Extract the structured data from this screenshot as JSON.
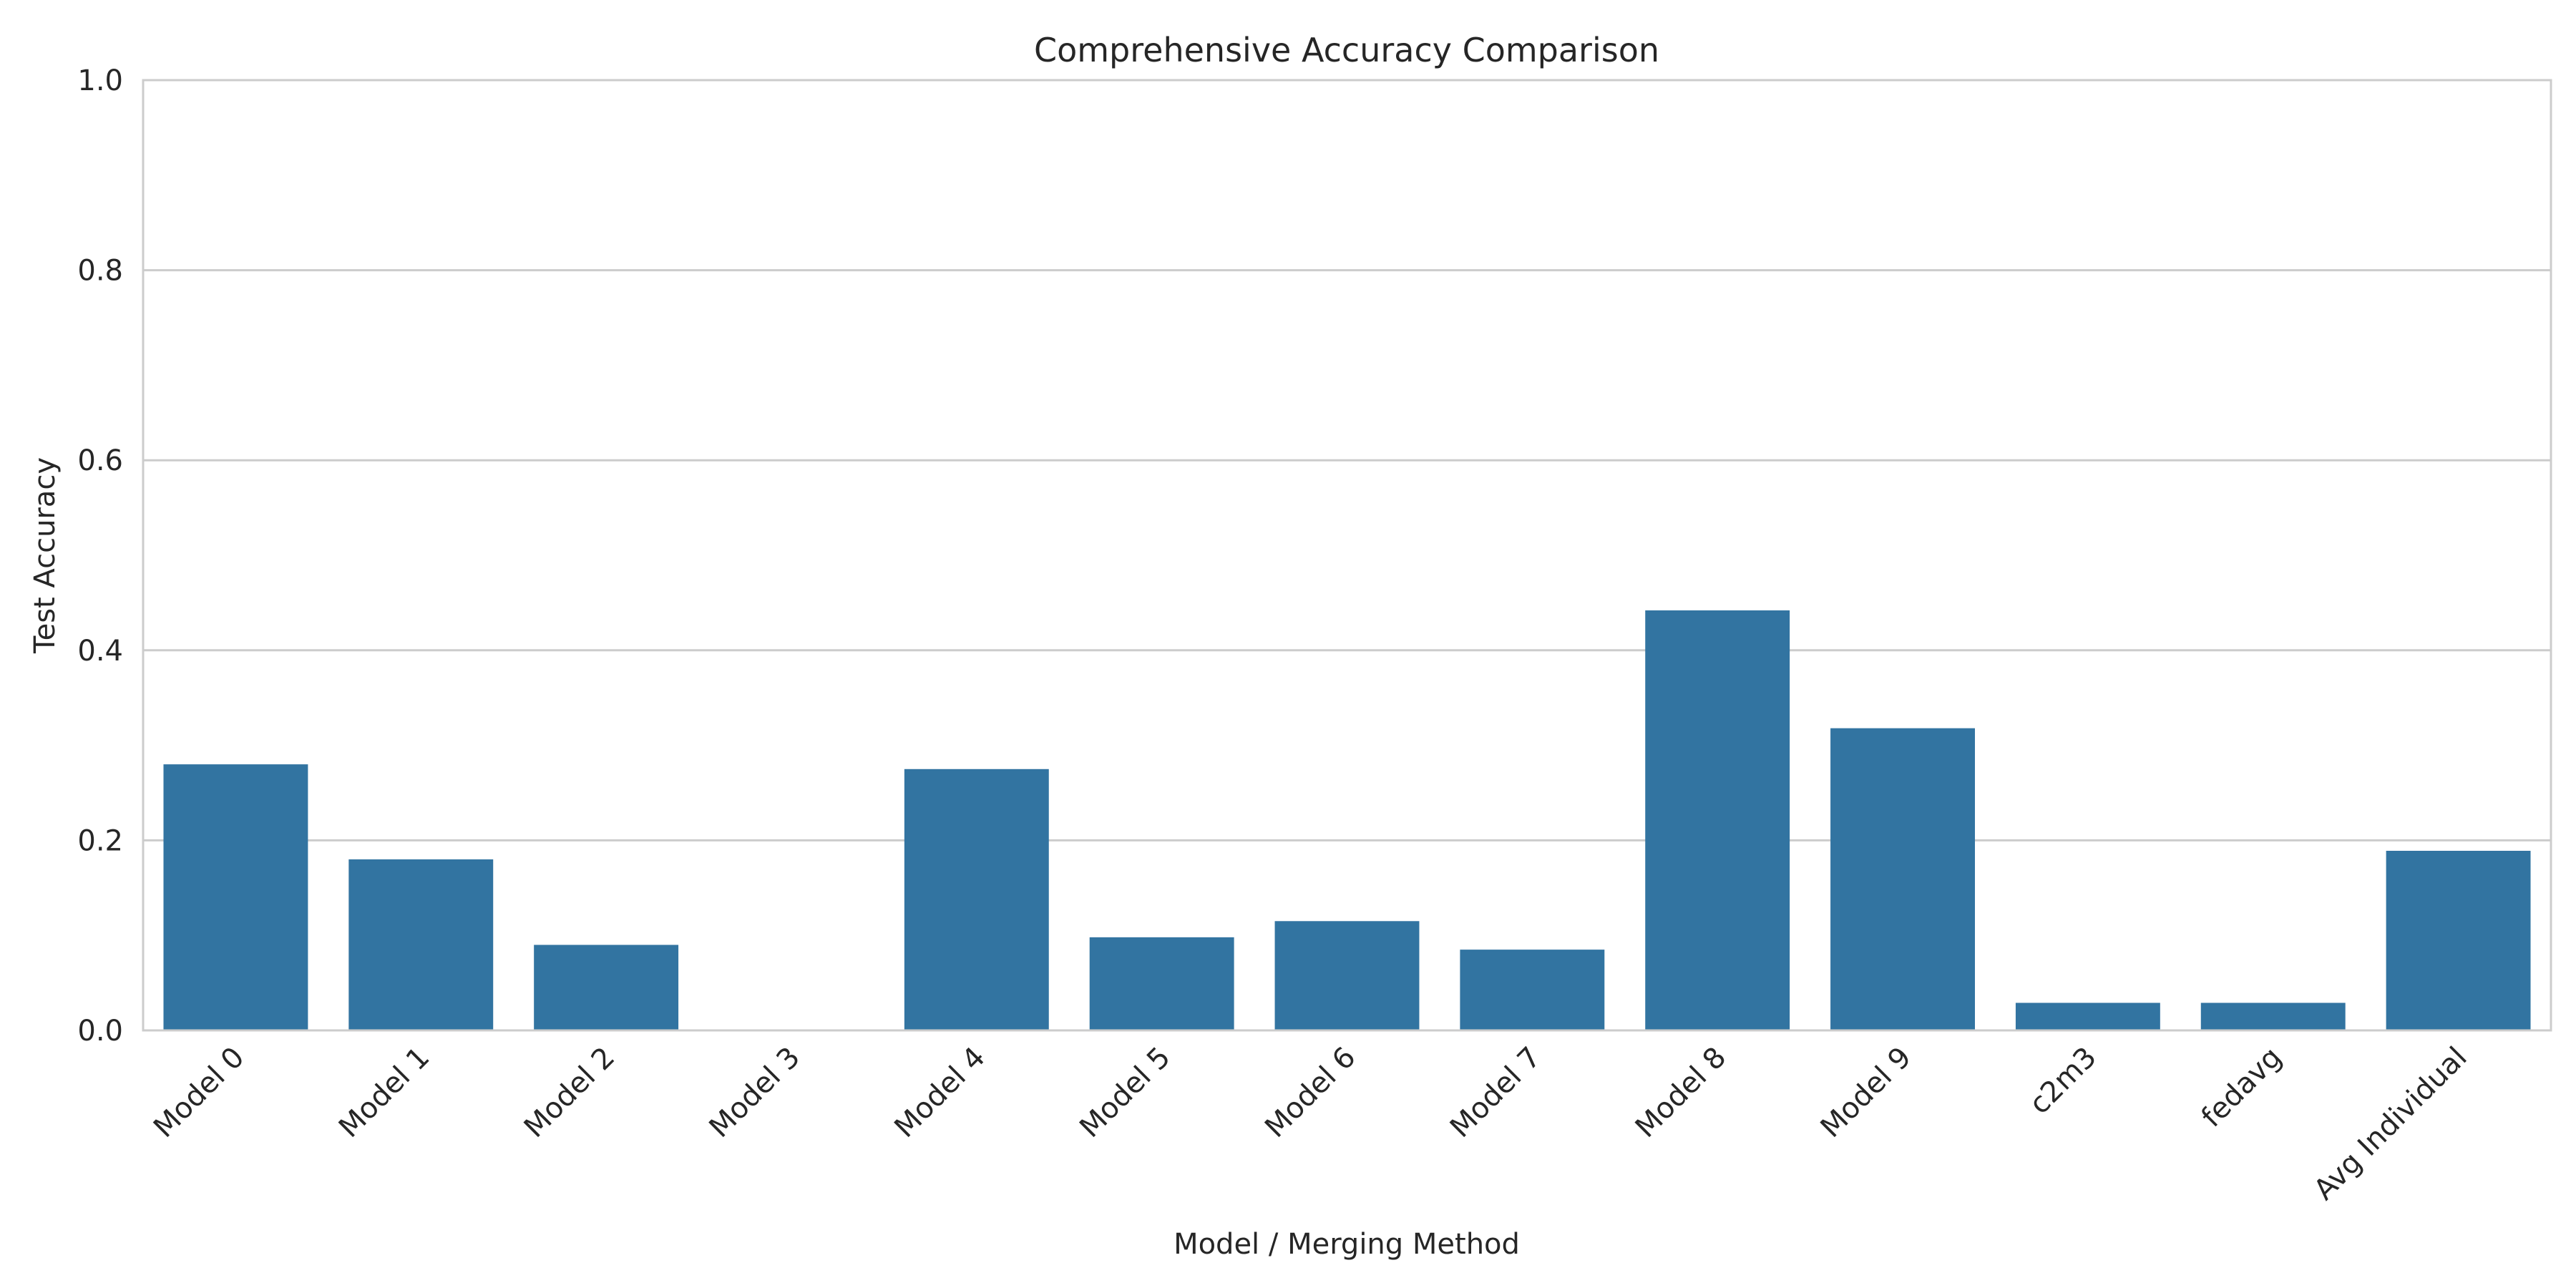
{
  "chart_data": {
    "type": "bar",
    "title": "Comprehensive Accuracy Comparison",
    "xlabel": "Model / Merging Method",
    "ylabel": "Test Accuracy",
    "ylim": [
      0,
      1.0
    ],
    "yticks": [
      "0.0",
      "0.2",
      "0.4",
      "0.6",
      "0.8",
      "1.0"
    ],
    "grid": "horizontal",
    "categories": [
      "Model 0",
      "Model 1",
      "Model 2",
      "Model 3",
      "Model 4",
      "Model 5",
      "Model 6",
      "Model 7",
      "Model 8",
      "Model 9",
      "c2m3",
      "fedavg",
      "Avg Individual"
    ],
    "values": [
      0.28,
      0.18,
      0.09,
      0.0,
      0.275,
      0.098,
      0.115,
      0.085,
      0.442,
      0.318,
      0.029,
      0.029,
      0.189
    ],
    "bar_color": "#3274a1"
  }
}
